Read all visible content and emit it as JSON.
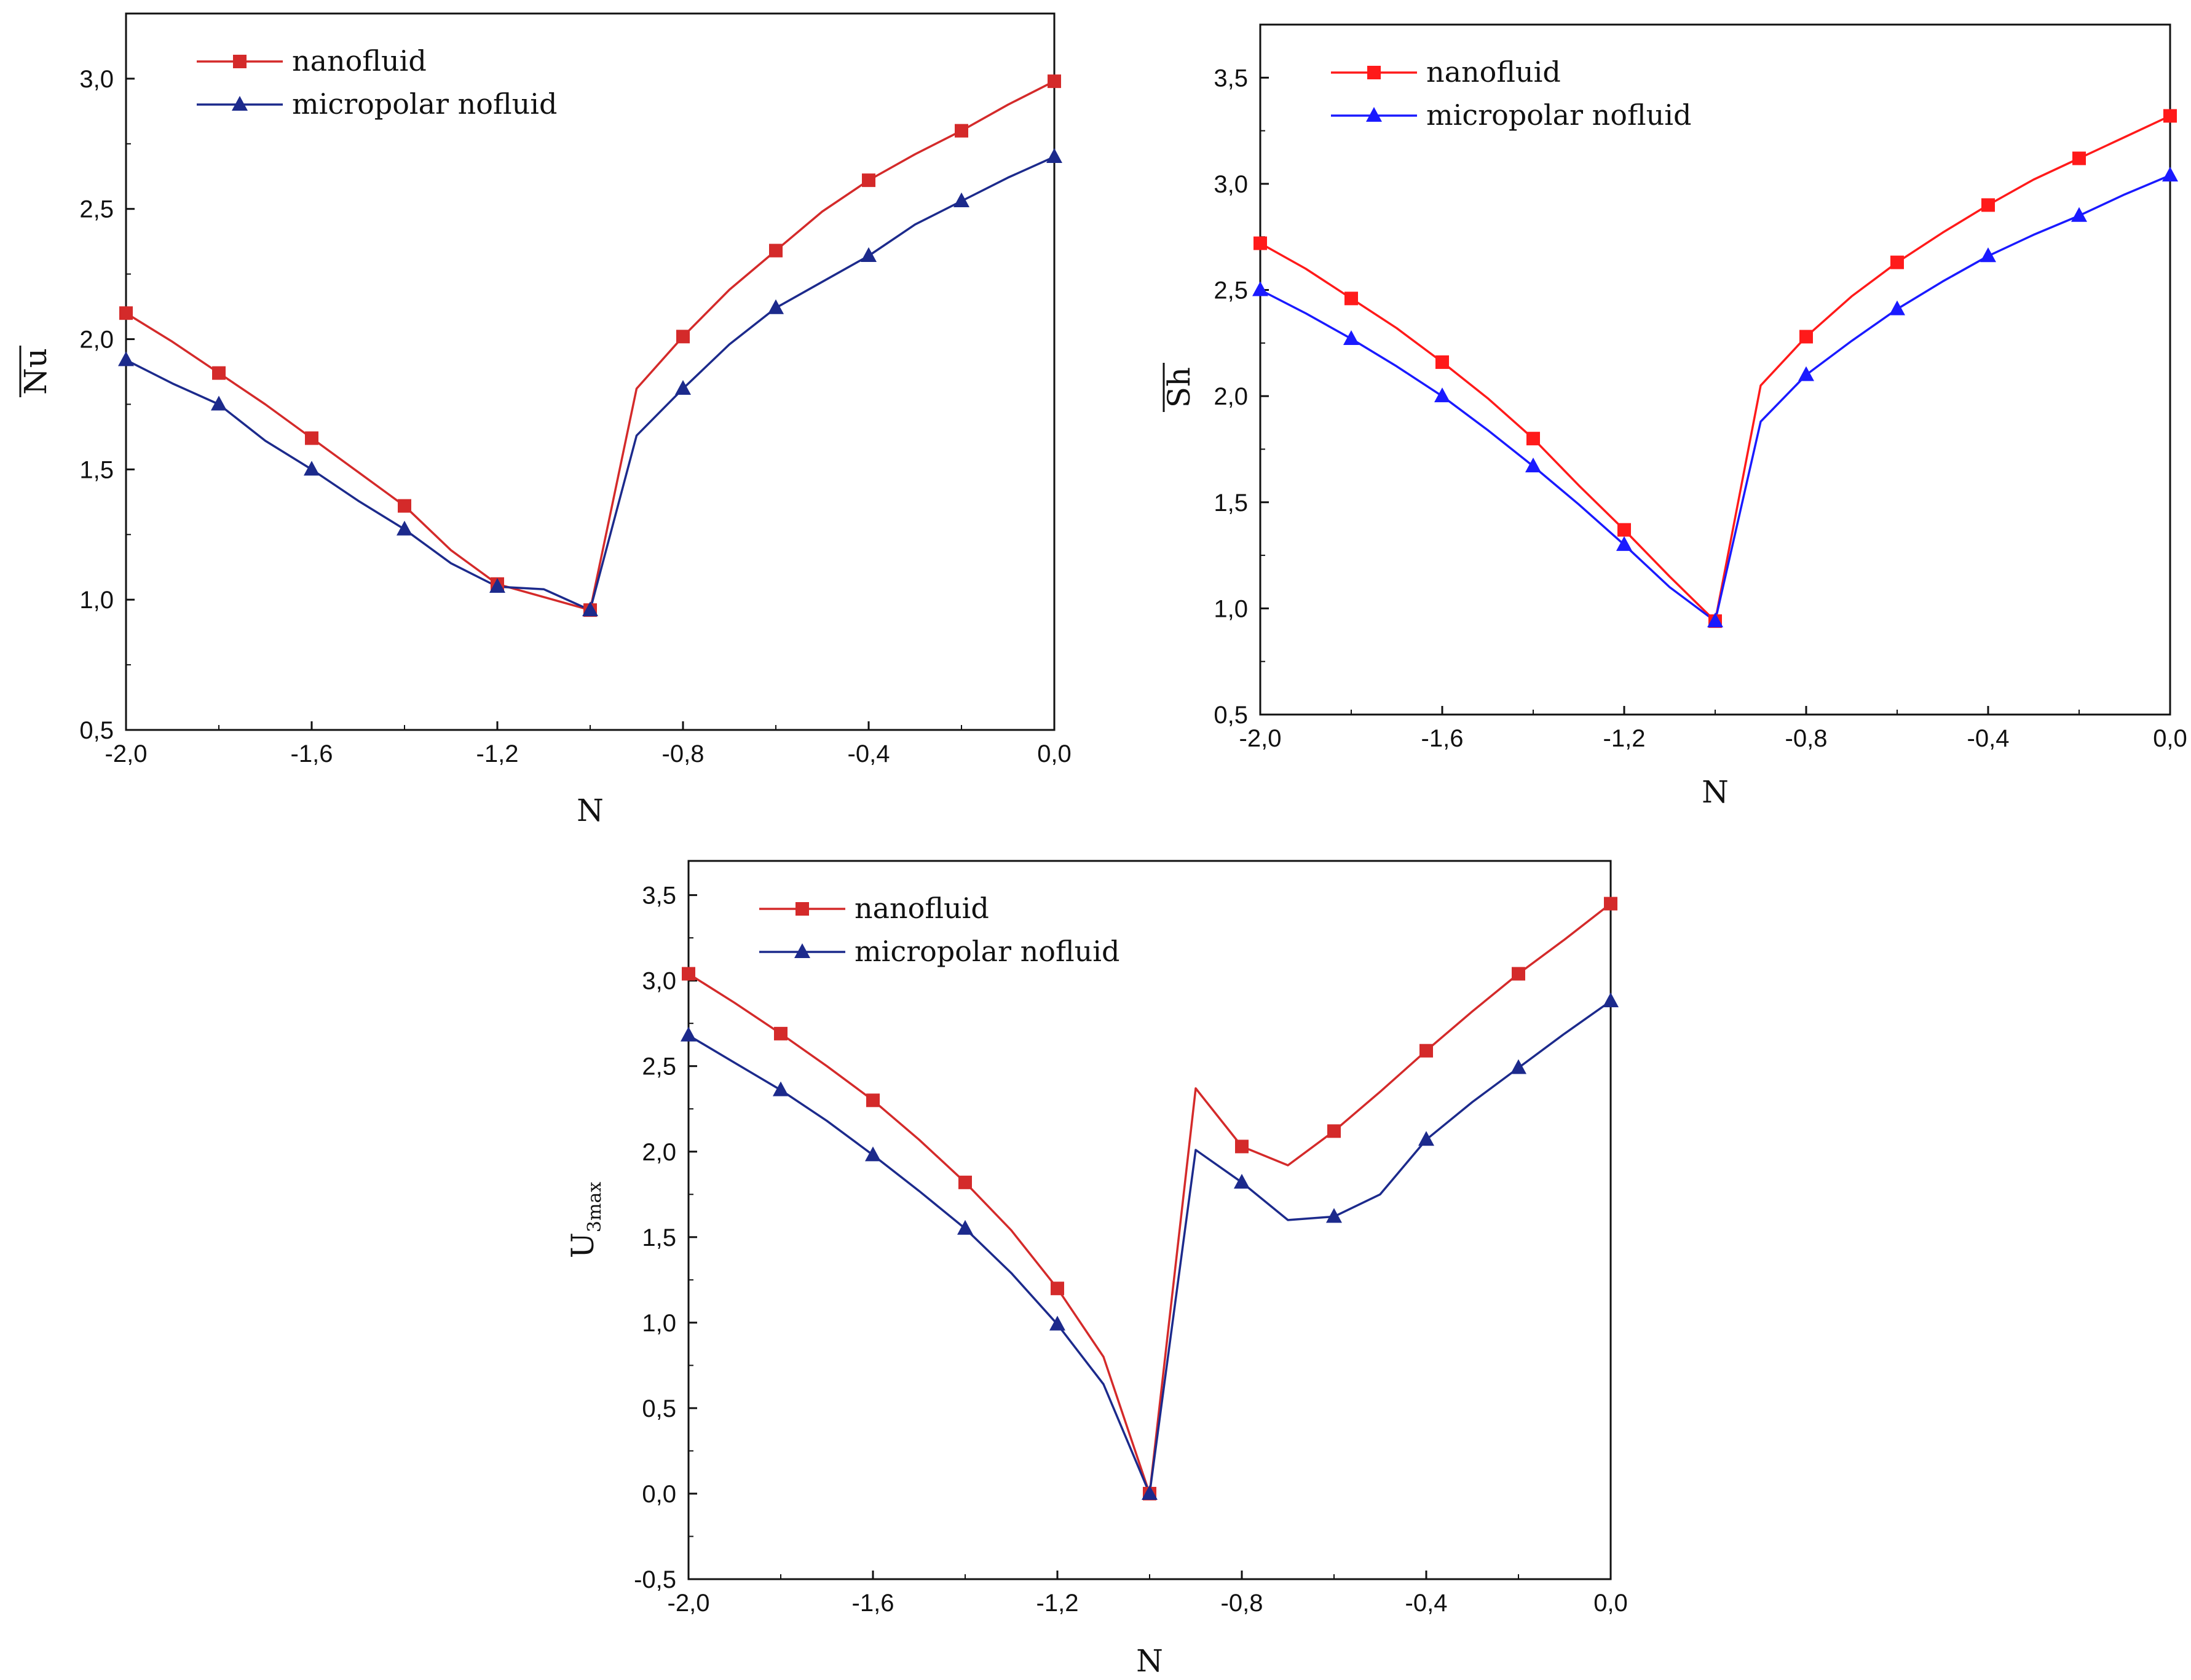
{
  "chart_data": [
    {
      "type": "line",
      "title": "",
      "xlabel": "N",
      "ylabel": "Nu",
      "ylabel_overline": true,
      "xlim": [
        -2.0,
        0.0
      ],
      "ylim": [
        0.5,
        3.25
      ],
      "xticks": [
        "-2,0",
        "-1,6",
        "-1,2",
        "-0,8",
        "-0,4",
        "0,0"
      ],
      "xtick_values": [
        -2.0,
        -1.6,
        -1.2,
        -0.8,
        -0.4,
        0.0
      ],
      "yticks": [
        "0,5",
        "1,0",
        "1,5",
        "2,0",
        "2,5",
        "3,0"
      ],
      "ytick_values": [
        0.5,
        1.0,
        1.5,
        2.0,
        2.5,
        3.0
      ],
      "grid": false,
      "legend_position": "top-left",
      "x": [
        -2.0,
        -1.9,
        -1.8,
        -1.7,
        -1.6,
        -1.5,
        -1.4,
        -1.3,
        -1.2,
        -1.1,
        -1.0,
        -0.9,
        -0.8,
        -0.7,
        -0.6,
        -0.5,
        -0.4,
        -0.3,
        -0.2,
        -0.1,
        0.0
      ],
      "marker_x": [
        -2.0,
        -1.8,
        -1.6,
        -1.4,
        -1.2,
        -1.0,
        -0.8,
        -0.6,
        -0.4,
        -0.2,
        0.0
      ],
      "series": [
        {
          "name": "nanofluid",
          "color": "#d42a2a",
          "marker": "square",
          "values": [
            2.1,
            1.99,
            1.87,
            1.75,
            1.62,
            1.49,
            1.36,
            1.19,
            1.06,
            1.01,
            0.96,
            1.81,
            2.01,
            2.19,
            2.34,
            2.49,
            2.61,
            2.71,
            2.8,
            2.9,
            2.99
          ]
        },
        {
          "name": "micropolar nofluid",
          "color": "#1c2a8c",
          "marker": "triangle",
          "values": [
            1.92,
            1.83,
            1.75,
            1.61,
            1.5,
            1.38,
            1.27,
            1.14,
            1.05,
            1.04,
            0.96,
            1.63,
            1.81,
            1.98,
            2.12,
            2.22,
            2.32,
            2.44,
            2.53,
            2.62,
            2.7
          ]
        }
      ]
    },
    {
      "type": "line",
      "title": "",
      "xlabel": "N",
      "ylabel": "Sh",
      "ylabel_overline": true,
      "xlim": [
        -2.0,
        0.0
      ],
      "ylim": [
        0.5,
        3.75
      ],
      "xticks": [
        "-2,0",
        "-1,6",
        "-1,2",
        "-0,8",
        "-0,4",
        "0,0"
      ],
      "xtick_values": [
        -2.0,
        -1.6,
        -1.2,
        -0.8,
        -0.4,
        0.0
      ],
      "yticks": [
        "0,5",
        "1,0",
        "1,5",
        "2,0",
        "2,5",
        "3,0",
        "3,5"
      ],
      "ytick_values": [
        0.5,
        1.0,
        1.5,
        2.0,
        2.5,
        3.0,
        3.5
      ],
      "grid": false,
      "legend_position": "top-left",
      "x": [
        -2.0,
        -1.9,
        -1.8,
        -1.7,
        -1.6,
        -1.5,
        -1.4,
        -1.3,
        -1.2,
        -1.1,
        -1.0,
        -0.9,
        -0.8,
        -0.7,
        -0.6,
        -0.5,
        -0.4,
        -0.3,
        -0.2,
        -0.1,
        0.0
      ],
      "marker_x": [
        -2.0,
        -1.8,
        -1.6,
        -1.4,
        -1.2,
        -1.0,
        -0.8,
        -0.6,
        -0.4,
        -0.2,
        0.0
      ],
      "series": [
        {
          "name": "nanofluid",
          "color": "#ff1a1a",
          "marker": "square",
          "values": [
            2.72,
            2.6,
            2.46,
            2.32,
            2.16,
            1.99,
            1.8,
            1.58,
            1.37,
            1.15,
            0.94,
            2.05,
            2.28,
            2.47,
            2.63,
            2.77,
            2.9,
            3.02,
            3.12,
            3.22,
            3.32
          ]
        },
        {
          "name": "micropolar nofluid",
          "color": "#1a1aff",
          "marker": "triangle",
          "values": [
            2.5,
            2.39,
            2.27,
            2.14,
            2.0,
            1.84,
            1.67,
            1.49,
            1.3,
            1.1,
            0.94,
            1.88,
            2.1,
            2.26,
            2.41,
            2.54,
            2.66,
            2.76,
            2.85,
            2.95,
            3.04
          ]
        }
      ]
    },
    {
      "type": "line",
      "title": "",
      "xlabel": "N",
      "ylabel": "U",
      "ylabel_sub": "3max",
      "xlim": [
        -2.0,
        0.0
      ],
      "ylim": [
        -0.5,
        3.7
      ],
      "xticks": [
        "-2,0",
        "-1,6",
        "-1,2",
        "-0,8",
        "-0,4",
        "0,0"
      ],
      "xtick_values": [
        -2.0,
        -1.6,
        -1.2,
        -0.8,
        -0.4,
        0.0
      ],
      "yticks": [
        "-0,5",
        "0,0",
        "0,5",
        "1,0",
        "1,5",
        "2,0",
        "2,5",
        "3,0",
        "3,5"
      ],
      "ytick_values": [
        -0.5,
        0.0,
        0.5,
        1.0,
        1.5,
        2.0,
        2.5,
        3.0,
        3.5
      ],
      "grid": false,
      "legend_position": "top-left",
      "x": [
        -2.0,
        -1.9,
        -1.8,
        -1.7,
        -1.6,
        -1.5,
        -1.4,
        -1.3,
        -1.2,
        -1.1,
        -1.0,
        -0.9,
        -0.8,
        -0.7,
        -0.6,
        -0.5,
        -0.4,
        -0.3,
        -0.2,
        -0.1,
        0.0
      ],
      "marker_x": [
        -2.0,
        -1.8,
        -1.6,
        -1.4,
        -1.2,
        -1.0,
        -0.8,
        -0.6,
        -0.4,
        -0.2,
        0.0
      ],
      "series": [
        {
          "name": "nanofluid",
          "color": "#d42a2a",
          "marker": "square",
          "values": [
            3.04,
            2.87,
            2.69,
            2.5,
            2.3,
            2.07,
            1.82,
            1.54,
            1.2,
            0.8,
            0.0,
            2.37,
            2.03,
            1.92,
            2.12,
            2.35,
            2.59,
            2.82,
            3.04,
            3.24,
            3.45
          ]
        },
        {
          "name": "micropolar nofluid",
          "color": "#1c2a8c",
          "marker": "triangle",
          "values": [
            2.68,
            2.52,
            2.36,
            2.18,
            1.98,
            1.77,
            1.55,
            1.29,
            0.99,
            0.64,
            0.0,
            2.01,
            1.82,
            1.6,
            1.62,
            1.75,
            2.07,
            2.29,
            2.49,
            2.69,
            2.88
          ]
        }
      ]
    }
  ]
}
